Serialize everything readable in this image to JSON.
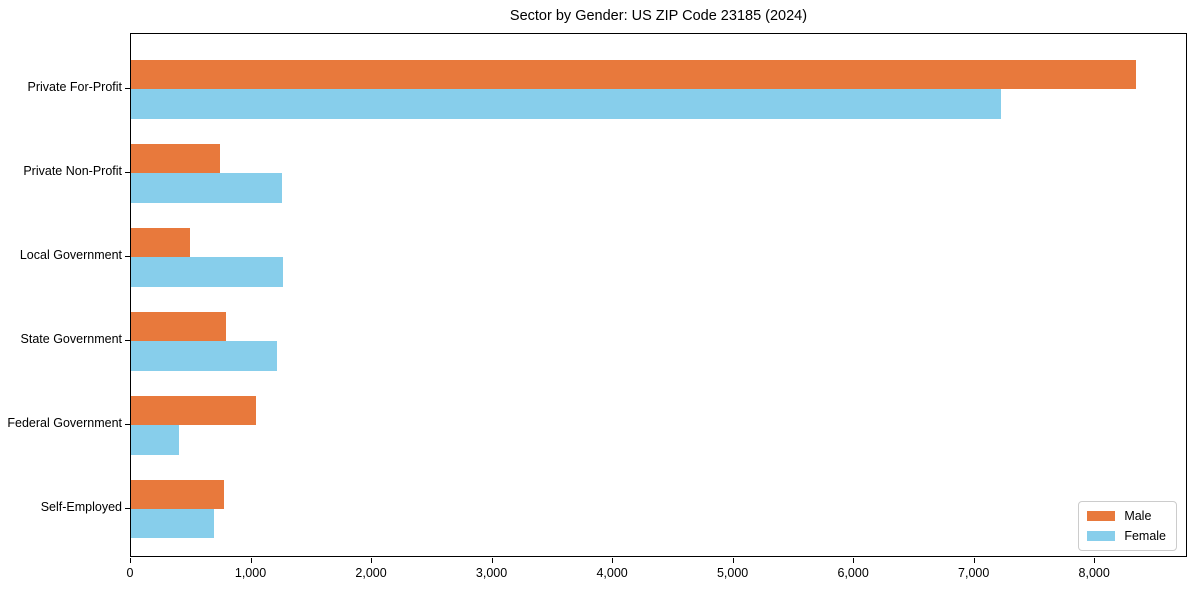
{
  "title": "Sector by Gender: US ZIP Code 23185 (2024)",
  "colors": {
    "male_bar": "#E8793C",
    "female_bar": "#87CEEB",
    "axis": "#000000",
    "legend_border": "#cccccc",
    "background": "#ffffff"
  },
  "legend": {
    "items": [
      {
        "label": "Male",
        "color": "#E8793C"
      },
      {
        "label": "Female",
        "color": "#87CEEB"
      }
    ],
    "position": "lower right"
  },
  "chart_data": {
    "type": "bar",
    "orientation": "horizontal",
    "title": "Sector by Gender: US ZIP Code 23185 (2024)",
    "categories": [
      "Private For-Profit",
      "Private Non-Profit",
      "Local Government",
      "State Government",
      "Federal Government",
      "Self-Employed"
    ],
    "series": [
      {
        "name": "Male",
        "color": "#E8793C",
        "values": [
          8340,
          740,
          490,
          790,
          1040,
          770
        ]
      },
      {
        "name": "Female",
        "color": "#87CEEB",
        "values": [
          7220,
          1250,
          1260,
          1210,
          400,
          690
        ]
      }
    ],
    "xlabel": "",
    "ylabel": "",
    "xlim": [
      0,
      8770
    ],
    "xticks": [
      0,
      1000,
      2000,
      3000,
      4000,
      5000,
      6000,
      7000,
      8000
    ],
    "xtick_labels": [
      "0",
      "1,000",
      "2,000",
      "3,000",
      "4,000",
      "5,000",
      "6,000",
      "7,000",
      "8,000"
    ],
    "grid": false,
    "legend_position": "lower right"
  }
}
